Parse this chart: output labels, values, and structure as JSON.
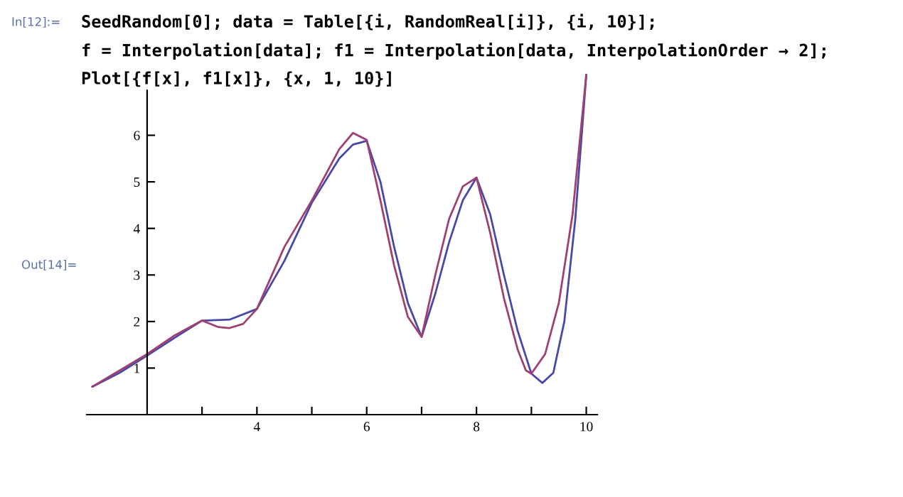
{
  "chart_data": {
    "type": "line",
    "annotations": [
      "In[12]:=",
      "SeedRandom[0]; data = Table[{i, RandomReal[i]}, {i, 10}];",
      "f = Interpolation[data]; f1 = Interpolation[data, InterpolationOrder → 2];",
      "Plot[{f[x], f1[x]}, {x, 1, 10}]",
      "Out[14]="
    ],
    "series": [
      {
        "color": "#4848a8",
        "x": [
          1,
          1.5,
          2,
          2.5,
          3,
          3.5,
          4,
          4.5,
          5,
          5.5,
          5.75,
          6,
          6.25,
          6.5,
          6.75,
          7,
          7.25,
          7.5,
          7.75,
          8,
          8.25,
          8.5,
          8.75,
          9,
          9.2,
          9.4,
          9.6,
          9.8,
          10
        ],
        "values": [
          0.6,
          0.9,
          1.27,
          1.65,
          2.02,
          2.04,
          2.27,
          3.3,
          4.55,
          5.5,
          5.8,
          5.88,
          5.0,
          3.6,
          2.4,
          1.67,
          2.6,
          3.7,
          4.6,
          5.09,
          4.3,
          3.0,
          1.8,
          0.88,
          0.68,
          0.9,
          2.0,
          4.2,
          7.3
        ]
      },
      {
        "color": "#a04070",
        "x": [
          1,
          1.5,
          2,
          2.5,
          3,
          3.3,
          3.5,
          3.75,
          4,
          4.5,
          5,
          5.5,
          5.75,
          6,
          6.25,
          6.5,
          6.75,
          7,
          7.25,
          7.5,
          7.75,
          8,
          8.25,
          8.5,
          8.75,
          8.9,
          9,
          9.25,
          9.5,
          9.75,
          10
        ],
        "values": [
          0.6,
          0.95,
          1.3,
          1.7,
          2.02,
          1.88,
          1.86,
          1.95,
          2.27,
          3.6,
          4.6,
          5.7,
          6.05,
          5.9,
          4.6,
          3.2,
          2.1,
          1.67,
          3.0,
          4.2,
          4.9,
          5.09,
          3.9,
          2.5,
          1.4,
          0.95,
          0.88,
          1.3,
          2.4,
          4.3,
          7.3
        ]
      }
    ],
    "xlim": [
      0.9,
      10.2
    ],
    "ylim": [
      0,
      7.35
    ],
    "xticks": [
      {
        "value": 3,
        "label": null
      },
      4,
      {
        "value": 5,
        "label": null
      },
      6,
      {
        "value": 7,
        "label": null
      },
      8,
      {
        "value": 9,
        "label": null
      },
      10
    ],
    "yticks": [
      1,
      2,
      3,
      4,
      5,
      6
    ],
    "grid": false,
    "legend": false
  }
}
